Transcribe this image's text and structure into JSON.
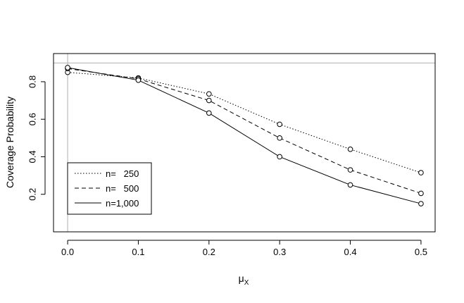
{
  "chart_data": {
    "type": "line",
    "title": "",
    "xlabel": "μ",
    "xlabel_subscript": "X",
    "ylabel": "Coverage Probability",
    "x": [
      0.0,
      0.1,
      0.2,
      0.3,
      0.4,
      0.5
    ],
    "x_tick_labels": [
      "0.0",
      "0.1",
      "0.2",
      "0.3",
      "0.4",
      "0.5"
    ],
    "y_ticks": [
      0.2,
      0.4,
      0.6,
      0.8
    ],
    "y_tick_labels": [
      "0.2",
      "0.4",
      "0.6",
      "0.8"
    ],
    "xlim": [
      -0.02,
      0.52
    ],
    "ylim": [
      0.0,
      0.95
    ],
    "reference_hline": 0.9,
    "reference_vline": 0.0,
    "reference_color": "#b0b0b0",
    "marker": "open-circle",
    "grid": false,
    "legend_position": "bottom-left",
    "series": [
      {
        "name": "n=   250",
        "line_style": "dotted",
        "values": [
          0.85,
          0.82,
          0.735,
          0.573,
          0.44,
          0.315
        ]
      },
      {
        "name": "n=   500",
        "line_style": "dashed",
        "values": [
          0.87,
          0.815,
          0.7,
          0.5,
          0.33,
          0.205
        ]
      },
      {
        "name": "n=1,000",
        "line_style": "solid",
        "values": [
          0.875,
          0.808,
          0.633,
          0.4,
          0.25,
          0.15
        ]
      }
    ]
  }
}
